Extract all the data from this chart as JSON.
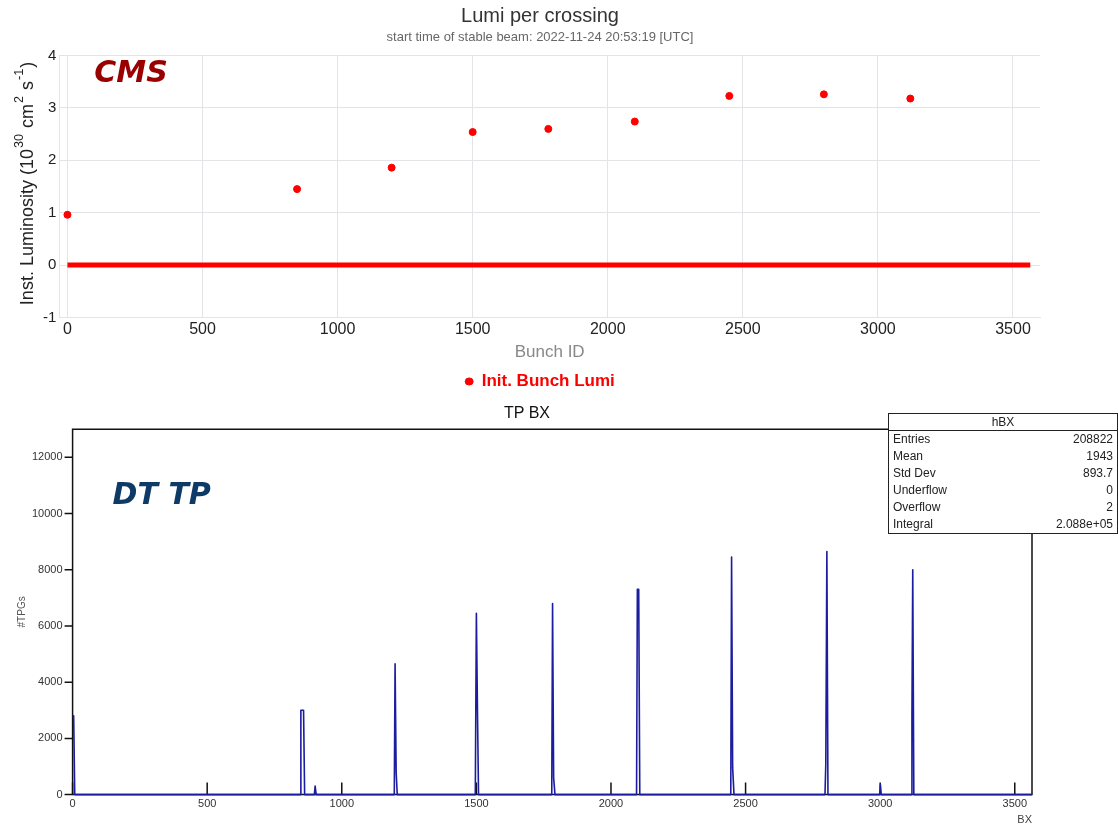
{
  "chart_data": [
    {
      "type": "scatter",
      "title": "Lumi per crossing",
      "subtitle": "start time of stable beam: 2022-11-24 20:53:19 [UTC]",
      "xlabel": "Bunch ID",
      "ylabel": "Inst. Luminosity (10$^{30}$ cm$^{2}$ s$^{-1}$)",
      "annotations": [
        "CMS"
      ],
      "xlim": [
        -30,
        3600
      ],
      "xticks": [
        0,
        500,
        1000,
        1500,
        2000,
        2500,
        3000,
        3500
      ],
      "ylim": [
        -1,
        4
      ],
      "yticks": [
        -1,
        0,
        1,
        2,
        3,
        4
      ],
      "grid": true,
      "legend": "bottom",
      "series": [
        {
          "name": "Init. Bunch Lumi",
          "marker": "circle",
          "color": "#ff0000",
          "x": [
            0,
            850,
            1200,
            1500,
            1780,
            2100,
            2450,
            2800,
            3120
          ],
          "values": [
            0.96,
            1.45,
            1.86,
            2.54,
            2.6,
            2.74,
            3.23,
            3.26,
            3.18
          ]
        },
        {
          "type": "line",
          "marker": "none",
          "color": "#ff0000",
          "x": [
            0,
            3564
          ],
          "values": [
            0,
            0
          ]
        }
      ]
    },
    {
      "type": "line",
      "title": "TP BX",
      "xlabel": "BX",
      "ylabel": "#TPGs",
      "annotations": [
        "DT TP",
        "hBX",
        "Entries",
        "208822",
        "Mean",
        "1943",
        "Std Dev",
        "893.7",
        "Underflow",
        "0",
        "Overflow",
        "2",
        "Integral",
        "2.088e+05"
      ],
      "xlim": [
        0,
        3564
      ],
      "xticks": [
        0,
        500,
        1000,
        1500,
        2000,
        2500,
        3000,
        3500
      ],
      "ylim": [
        0,
        13000
      ],
      "yticks": [
        0,
        2000,
        4000,
        6000,
        8000,
        10000,
        12000
      ],
      "grid": false,
      "legend": false,
      "series": [
        {
          "color": "#1c1ca0",
          "x": [
            0,
            4,
            8,
            845,
            848,
            858,
            862,
            898,
            901,
            905,
            1195,
            1198,
            1202,
            1206,
            1496,
            1500,
            1504,
            1508,
            1780,
            1783,
            1787,
            1792,
            2095,
            2098,
            2103,
            2107,
            2445,
            2448,
            2452,
            2457,
            2795,
            2798,
            2802,
            2806,
            2998,
            3001,
            3004,
            3115,
            3118,
            3121,
            3125,
            3564
          ],
          "values": [
            2800,
            2800,
            0,
            0,
            3000,
            3000,
            0,
            0,
            300,
            0,
            0,
            4650,
            800,
            0,
            0,
            6450,
            3000,
            0,
            0,
            6800,
            600,
            0,
            0,
            7300,
            7300,
            0,
            0,
            8450,
            950,
            0,
            0,
            1100,
            8650,
            0,
            0,
            350,
            0,
            0,
            2800,
            8000,
            0,
            0
          ]
        }
      ]
    }
  ]
}
